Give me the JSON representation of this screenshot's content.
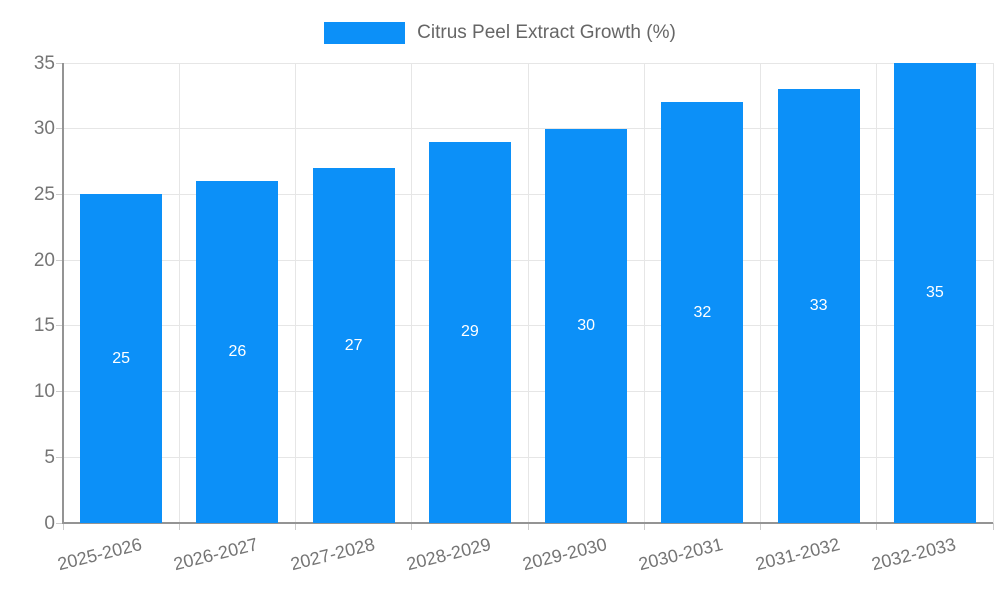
{
  "chart_data": {
    "type": "bar",
    "title": "",
    "legend": "Citrus Peel Extract Growth (%)",
    "legend_position": "top",
    "categories": [
      "2025-2026",
      "2026-2027",
      "2027-2028",
      "2028-2029",
      "2029-2030",
      "2030-2031",
      "2031-2032",
      "2032-2033"
    ],
    "values": [
      25,
      26,
      27,
      29,
      30,
      32,
      33,
      35
    ],
    "xlabel": "",
    "ylabel": "",
    "ylim": [
      0,
      35
    ],
    "ytick_step": 5,
    "yticks": [
      0,
      5,
      10,
      15,
      20,
      25,
      30,
      35
    ],
    "grid": true,
    "value_labels": "inside-center",
    "colors": {
      "bar": "#0C90F8",
      "value_label": "#ffffff",
      "axis_text": "#757575",
      "legend_text": "#666666",
      "gridline": "#e6e6e6",
      "axis_line": "#949494",
      "tick_mark": "#cccccc",
      "background": "#ffffff"
    }
  }
}
